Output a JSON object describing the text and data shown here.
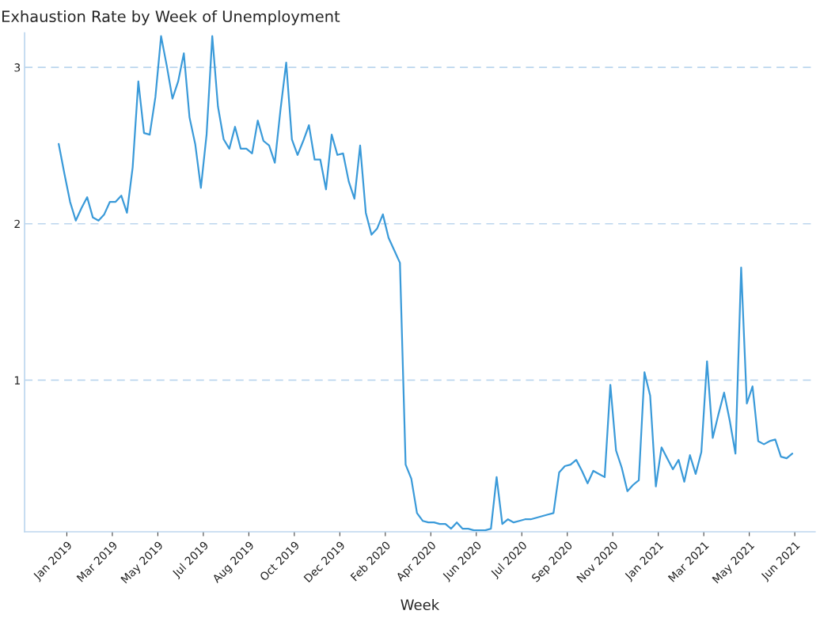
{
  "chart_data": {
    "type": "line",
    "title": "Exhaustion Rate by Week of Unemployment",
    "xlabel": "Week",
    "x": [
      "2019-01-06",
      "2019-01-13",
      "2019-01-20",
      "2019-01-27",
      "2019-02-03",
      "2019-02-10",
      "2019-02-17",
      "2019-02-24",
      "2019-03-03",
      "2019-03-10",
      "2019-03-17",
      "2019-03-24",
      "2019-03-31",
      "2019-04-07",
      "2019-04-14",
      "2019-04-21",
      "2019-04-28",
      "2019-05-05",
      "2019-05-12",
      "2019-05-19",
      "2019-05-26",
      "2019-06-02",
      "2019-06-09",
      "2019-06-16",
      "2019-06-23",
      "2019-06-30",
      "2019-07-07",
      "2019-07-14",
      "2019-07-21",
      "2019-07-28",
      "2019-08-04",
      "2019-08-11",
      "2019-08-18",
      "2019-08-25",
      "2019-09-01",
      "2019-09-08",
      "2019-09-15",
      "2019-09-22",
      "2019-09-29",
      "2019-10-06",
      "2019-10-13",
      "2019-10-20",
      "2019-10-27",
      "2019-11-03",
      "2019-11-10",
      "2019-11-17",
      "2019-11-24",
      "2019-12-01",
      "2019-12-08",
      "2019-12-15",
      "2019-12-22",
      "2019-12-29",
      "2020-01-05",
      "2020-01-12",
      "2020-01-19",
      "2020-01-26",
      "2020-02-02",
      "2020-02-09",
      "2020-02-16",
      "2020-02-23",
      "2020-03-01",
      "2020-03-08",
      "2020-03-15",
      "2020-03-22",
      "2020-03-29",
      "2020-04-05",
      "2020-04-12",
      "2020-04-19",
      "2020-04-26",
      "2020-05-03",
      "2020-05-10",
      "2020-05-17",
      "2020-05-24",
      "2020-05-31",
      "2020-06-07",
      "2020-06-14",
      "2020-06-21",
      "2020-06-28",
      "2020-07-05",
      "2020-07-12",
      "2020-07-19",
      "2020-07-26",
      "2020-08-02",
      "2020-08-09",
      "2020-08-16",
      "2020-08-23",
      "2020-08-30",
      "2020-09-06",
      "2020-09-13",
      "2020-09-20",
      "2020-09-27",
      "2020-10-04",
      "2020-10-11",
      "2020-10-18",
      "2020-10-25",
      "2020-11-01",
      "2020-11-08",
      "2020-11-15",
      "2020-11-22",
      "2020-11-29",
      "2020-12-06",
      "2020-12-13",
      "2020-12-20",
      "2020-12-27",
      "2021-01-03",
      "2021-01-10",
      "2021-01-17",
      "2021-01-24",
      "2021-01-31",
      "2021-02-07",
      "2021-02-14",
      "2021-02-21",
      "2021-02-28",
      "2021-03-07",
      "2021-03-14",
      "2021-03-21",
      "2021-03-28",
      "2021-04-04",
      "2021-04-11",
      "2021-04-18",
      "2021-04-25",
      "2021-05-02",
      "2021-05-09",
      "2021-05-16",
      "2021-05-23",
      "2021-05-30",
      "2021-06-06",
      "2021-06-13",
      "2021-06-20",
      "2021-06-27"
    ],
    "series": [
      {
        "color": "#3a9ad9",
        "values": [
          2.51,
          2.32,
          2.14,
          2.02,
          2.1,
          2.17,
          2.04,
          2.02,
          2.06,
          2.14,
          2.14,
          2.18,
          2.07,
          2.36,
          2.91,
          2.58,
          2.57,
          2.81,
          3.2,
          3.01,
          2.8,
          2.91,
          3.09,
          2.68,
          2.51,
          2.23,
          2.57,
          3.2,
          2.75,
          2.54,
          2.48,
          2.62,
          2.48,
          2.48,
          2.45,
          2.66,
          2.53,
          2.5,
          2.39,
          2.73,
          3.03,
          2.54,
          2.44,
          2.53,
          2.63,
          2.41,
          2.41,
          2.22,
          2.57,
          2.44,
          2.45,
          2.27,
          2.16,
          2.5,
          2.07,
          1.93,
          1.97,
          2.06,
          1.91,
          1.83,
          1.75,
          0.46,
          0.37,
          0.15,
          0.1,
          0.09,
          0.09,
          0.08,
          0.08,
          0.05,
          0.09,
          0.05,
          0.05,
          0.04,
          0.04,
          0.04,
          0.05,
          0.38,
          0.08,
          0.11,
          0.09,
          0.1,
          0.11,
          0.11,
          0.12,
          0.13,
          0.14,
          0.15,
          0.41,
          0.45,
          0.46,
          0.49,
          0.42,
          0.34,
          0.42,
          0.4,
          0.38,
          0.97,
          0.55,
          0.44,
          0.29,
          0.33,
          0.36,
          1.05,
          0.9,
          0.32,
          0.57,
          0.5,
          0.43,
          0.49,
          0.35,
          0.52,
          0.4,
          0.54,
          1.12,
          0.63,
          0.78,
          0.92,
          0.74,
          0.53,
          1.72,
          0.85,
          0.96,
          0.61,
          0.59,
          0.61,
          0.62,
          0.51,
          0.5,
          0.53
        ]
      }
    ],
    "xlim": [
      "2018-11-25",
      "2021-07-25"
    ],
    "xticks": [
      {
        "value": "2019-01-16",
        "label": "Jan 2019"
      },
      {
        "value": "2019-03-13",
        "label": "Mar 2019"
      },
      {
        "value": "2019-05-08",
        "label": "May 2019"
      },
      {
        "value": "2019-07-03",
        "label": "Jul 2019"
      },
      {
        "value": "2019-08-28",
        "label": "Aug 2019"
      },
      {
        "value": "2019-10-23",
        "label": "Oct 2019"
      },
      {
        "value": "2019-12-18",
        "label": "Dec 2019"
      },
      {
        "value": "2020-02-12",
        "label": "Feb 2020"
      },
      {
        "value": "2020-04-08",
        "label": "Apr 2020"
      },
      {
        "value": "2020-06-03",
        "label": "Jun 2020"
      },
      {
        "value": "2020-07-29",
        "label": "Jul 2020"
      },
      {
        "value": "2020-09-23",
        "label": "Sep 2020"
      },
      {
        "value": "2020-11-18",
        "label": "Nov 2020"
      },
      {
        "value": "2021-01-13",
        "label": "Jan 2021"
      },
      {
        "value": "2021-03-10",
        "label": "Mar 2021"
      },
      {
        "value": "2021-05-05",
        "label": "May 2021"
      },
      {
        "value": "2021-06-30",
        "label": "Jun 2021"
      }
    ],
    "ylim": [
      0.03,
      3.22
    ],
    "yticks": [
      1,
      2,
      3
    ],
    "grid": "y"
  }
}
